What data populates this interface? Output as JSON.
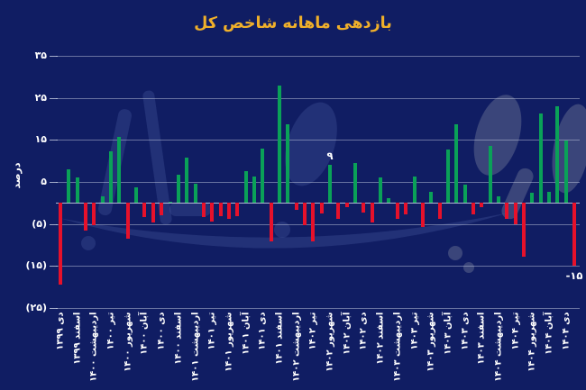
{
  "title": "بازدهی ماهانه شاخص کل",
  "y_axis": {
    "title": "درصد",
    "ticks": [
      {
        "label": "۳۵",
        "value": 35
      },
      {
        "label": "۲۵",
        "value": 25
      },
      {
        "label": "۱۵",
        "value": 15
      },
      {
        "label": "۵",
        "value": 5
      },
      {
        "label": "(۵)",
        "value": -5
      },
      {
        "label": "(۱۵)",
        "value": -15
      },
      {
        "label": "(۲۵)",
        "value": -25
      }
    ]
  },
  "colors": {
    "background": "#101d63",
    "title": "#f0b02a",
    "positive_bar": "#0aa158",
    "negative_bar": "#e6112b",
    "gridline": "#c0c8de",
    "text": "#ffffff"
  },
  "chart_data": {
    "type": "bar",
    "title": "بازدهی ماهانه شاخص کل",
    "ylabel": "درصد",
    "ylim": [
      -25,
      35
    ],
    "grid": true,
    "categories": [
      "دی ۱۳۹۹",
      "بهمن ۱۳۹۹",
      "اسفند ۱۳۹۹",
      "فروردین ۱۴۰۰",
      "اردیبهشت ۱۴۰۰",
      "خرداد ۱۴۰۰",
      "تیر ۱۴۰۰",
      "مرداد ۱۴۰۰",
      "شهریور ۱۴۰۰",
      "مهر ۱۴۰۰",
      "آبان ۱۴۰۰",
      "آذر ۱۴۰۰",
      "دی ۱۴۰۰",
      "بهمن ۱۴۰۰",
      "اسفند ۱۴۰۰",
      "فروردین ۱۴۰۱",
      "اردیبهشت ۱۴۰۱",
      "خرداد ۱۴۰۱",
      "تیر ۱۴۰۱",
      "مرداد ۱۴۰۱",
      "شهریور ۱۴۰۱",
      "مهر ۱۴۰۱",
      "آبان ۱۴۰۱",
      "آذر ۱۴۰۱",
      "دی ۱۴۰۱",
      "بهمن ۱۴۰۱",
      "اسفند ۱۴۰۱",
      "فروردین ۱۴۰۲",
      "اردیبهشت ۱۴۰۲",
      "خرداد ۱۴۰۲",
      "تیر ۱۴۰۲",
      "مرداد ۱۴۰۲",
      "شهریور ۱۴۰۲",
      "مهر ۱۴۰۲",
      "آبان ۱۴۰۲",
      "آذر ۱۴۰۲",
      "دی ۱۴۰۲",
      "بهمن ۱۴۰۲",
      "اسفند ۱۴۰۲",
      "فروردین ۱۴۰۳",
      "اردیبهشت ۱۴۰۳",
      "خرداد ۱۴۰۳",
      "تیر ۱۴۰۳",
      "مرداد ۱۴۰۳",
      "شهریور ۱۴۰۳",
      "مهر ۱۴۰۳",
      "آبان ۱۴۰۳",
      "آذر ۱۴۰۳",
      "دی ۱۴۰۳",
      "بهمن ۱۴۰۳",
      "اسفند ۱۴۰۳",
      "فروردین ۱۴۰۴",
      "اردیبهشت ۱۴۰۴",
      "خرداد ۱۴۰۴",
      "تیر ۱۴۰۴",
      "مرداد ۱۴۰۴",
      "شهریور ۱۴۰۴",
      "مهر ۱۴۰۴",
      "آبان ۱۴۰۴",
      "آذر ۱۴۰۴",
      "دی ۱۴۰۴",
      "بهمن ۱۴۰۴"
    ],
    "values": [
      -19.5,
      8,
      6,
      -6.6,
      -5.2,
      1.5,
      12.2,
      15.7,
      -8.6,
      3.8,
      -3.4,
      -4.6,
      -2.9,
      0.2,
      6.8,
      10.8,
      4.6,
      -3.4,
      -4.4,
      -3.1,
      -3.8,
      -3.2,
      7.5,
      6.2,
      13,
      -9.2,
      28,
      18.8,
      -1.7,
      -5.2,
      -9.2,
      -2.5,
      9,
      -3.7,
      -1,
      9.5,
      -2.3,
      -4.6,
      6.1,
      1.1,
      -3.7,
      -2.8,
      6.4,
      -5.8,
      2.7,
      -3.9,
      12.7,
      18.8,
      4.4,
      -2.7,
      -1,
      13.5,
      1.5,
      -3.9,
      -5.1,
      -12.8,
      2.4,
      21.3,
      2.6,
      23.1,
      14.8,
      -15
    ],
    "x_tick_labels": [
      "دی ۱۳۹۹",
      "اسفند ۱۳۹۹",
      "اردیبهشت ۱۴۰۰",
      "تیر ۱۴۰۰",
      "شهریور ۱۴۰۰",
      "آبان ۱۴۰۰",
      "دی ۱۴۰۰",
      "اسفند ۱۴۰۰",
      "اردیبهشت ۱۴۰۱",
      "تیر ۱۴۰۱",
      "شهریور ۱۴۰۱",
      "آبان ۱۴۰۱",
      "دی ۱۴۰۱",
      "اسفند ۱۴۰۱",
      "اردیبهشت ۱۴۰۲",
      "تیر ۱۴۰۲",
      "شهریور ۱۴۰۲",
      "آبان ۱۴۰۲",
      "دی ۱۴۰۲",
      "اسفند ۱۴۰۲",
      "اردیبهشت ۱۴۰۳",
      "تیر ۱۴۰۳",
      "شهریور ۱۴۰۳",
      "آبان ۱۴۰۳",
      "دی ۱۴۰۳",
      "اسفند ۱۴۰۳",
      "اردیبهشت ۱۴۰۴",
      "تیر ۱۴۰۴",
      "شهریور ۱۴۰۴",
      "آبان ۱۴۰۴",
      "دی ۱۴۰۴"
    ],
    "annotations": [
      {
        "text": "۹",
        "bar_index": 32,
        "position": "above"
      },
      {
        "text": "-۱۵",
        "bar_index": 61,
        "position": "below"
      }
    ],
    "legend": null
  }
}
